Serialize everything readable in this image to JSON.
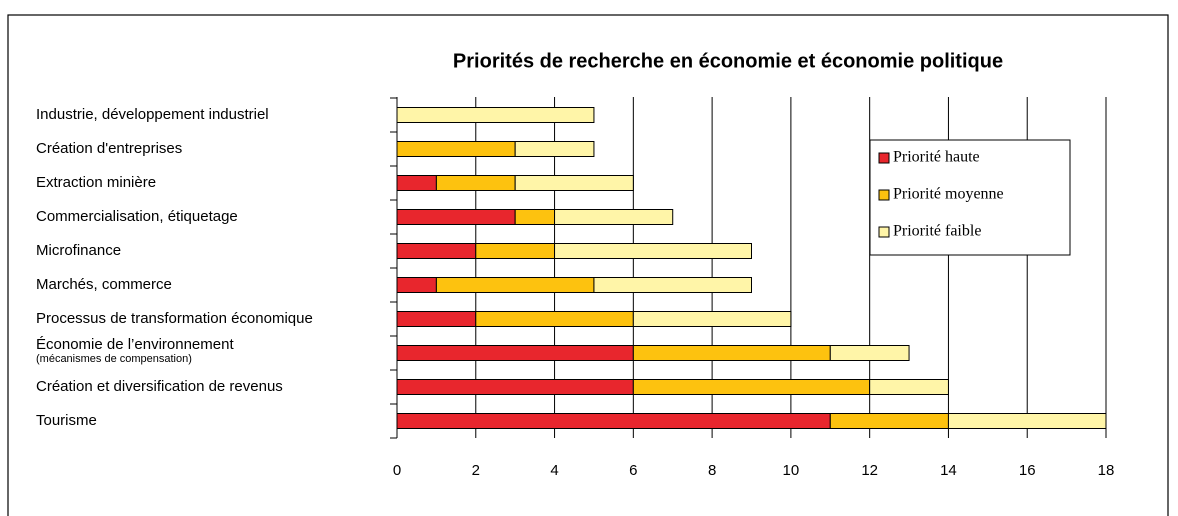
{
  "chart_data": {
    "type": "stacked_barh",
    "title": "Priorités de recherche en économie et économie politique",
    "categories": [
      "Industrie, développement industriel",
      "Création d'entreprises",
      "Extraction minière",
      "Commercialisation, étiquetage",
      "Microfinance",
      "Marchés, commerce",
      "Processus de transformation économique",
      "Économie de l’environnement\n(mécanismes de compensation)",
      "Création et diversification de revenus",
      "Tourisme"
    ],
    "series": [
      {
        "name": "Priorité haute",
        "color": "#e8262d",
        "values": [
          0,
          0,
          1,
          3,
          2,
          1,
          2,
          6,
          6,
          11
        ]
      },
      {
        "name": "Priorité moyenne",
        "color": "#fdc20f",
        "values": [
          0,
          3,
          2,
          1,
          2,
          4,
          4,
          5,
          6,
          3
        ]
      },
      {
        "name": "Priorité faible",
        "color": "#fff5a8",
        "values": [
          5,
          2,
          3,
          3,
          5,
          4,
          4,
          2,
          2,
          4
        ]
      }
    ],
    "xlim": [
      0,
      18
    ],
    "xticks": [
      0,
      2,
      4,
      6,
      8,
      10,
      12,
      14,
      16,
      18
    ],
    "grid": true,
    "legend": "upper right"
  }
}
